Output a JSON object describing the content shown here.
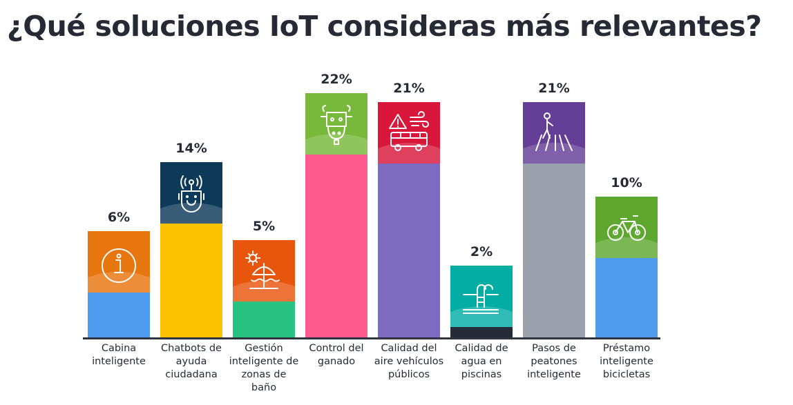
{
  "chart_data": {
    "type": "bar",
    "title": "¿Qué soluciones IoT consideras más relevantes?",
    "categories": [
      "Cabina inteligente",
      "Chatbots de ayuda ciudadana",
      "Gestión inteligente de zonas de baño",
      "Control del ganado",
      "Calidad del aire vehículos públicos",
      "Calidad de agua en piscinas",
      "Pasos de peatones inteligente",
      "Préstamo inteligente bicicletas"
    ],
    "values": [
      6,
      14,
      5,
      22,
      21,
      2,
      21,
      10
    ],
    "value_labels": [
      "6%",
      "14%",
      "5%",
      "22%",
      "21%",
      "2%",
      "21%",
      "10%"
    ],
    "icons": [
      "info-icon",
      "chatbot-robot-icon",
      "beach-umbrella-icon",
      "cow-icon",
      "bus-air-warning-icon",
      "pool-ladder-icon",
      "pedestrian-crossing-icon",
      "bicycle-icon"
    ],
    "panel_colors": [
      "#e8760e",
      "#0e3a5a",
      "#e8560e",
      "#78b83a",
      "#d8173a",
      "#03ada4",
      "#653f97",
      "#5ea82f"
    ],
    "bar_colors": [
      "#4f9bef",
      "#fdc300",
      "#28c283",
      "#ff5b8f",
      "#7d6bc2",
      "#262b38",
      "#9ba0ad",
      "#4f9bef"
    ],
    "ylabel": "",
    "xlabel": "",
    "grid": false
  }
}
